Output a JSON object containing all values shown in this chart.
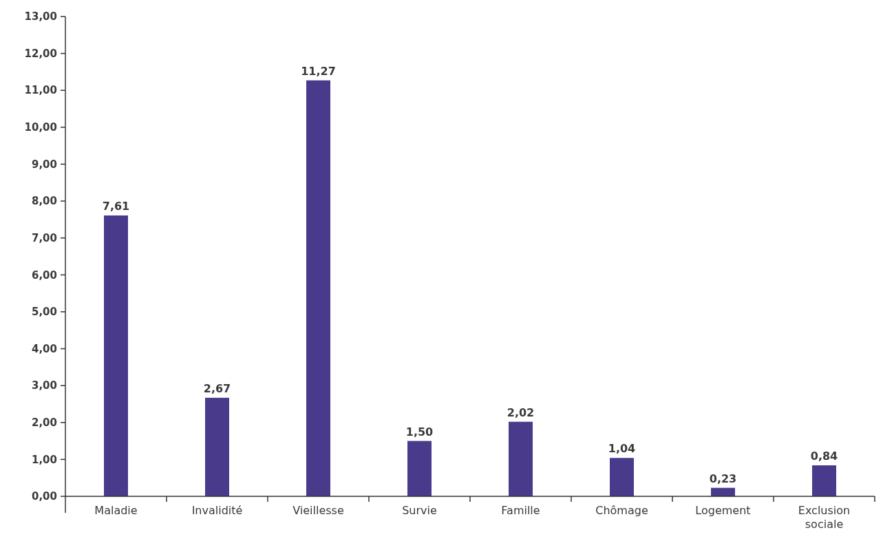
{
  "chart_data": {
    "type": "bar",
    "categories": [
      "Maladie",
      "Invalidité",
      "Vieillesse",
      "Survie",
      "Famille",
      "Chômage",
      "Logement",
      "Exclusion sociale"
    ],
    "values": [
      7.61,
      2.67,
      11.27,
      1.5,
      2.02,
      1.04,
      0.23,
      0.84
    ],
    "value_labels": [
      "7,61",
      "2,67",
      "11,27",
      "1,50",
      "2,02",
      "1,04",
      "0,23",
      "0,84"
    ],
    "color": "#4a3a8c",
    "ylim": [
      0,
      13
    ],
    "yticks": [
      {
        "value": 0,
        "label": "0,00"
      },
      {
        "value": 1,
        "label": "1,00"
      },
      {
        "value": 2,
        "label": "2,00"
      },
      {
        "value": 3,
        "label": "3,00"
      },
      {
        "value": 4,
        "label": "4,00"
      },
      {
        "value": 5,
        "label": "5,00"
      },
      {
        "value": 6,
        "label": "6,00"
      },
      {
        "value": 7,
        "label": "7,00"
      },
      {
        "value": 8,
        "label": "8,00"
      },
      {
        "value": 9,
        "label": "9,00"
      },
      {
        "value": 10,
        "label": "10,00"
      },
      {
        "value": 11,
        "label": "11,00"
      },
      {
        "value": 12,
        "label": "12,00"
      },
      {
        "value": 13,
        "label": "13,00"
      }
    ],
    "grid": false
  }
}
